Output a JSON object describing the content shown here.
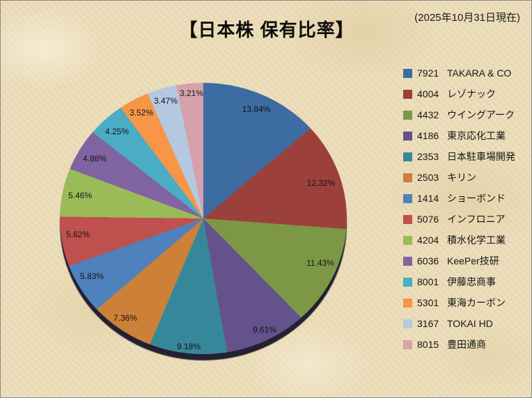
{
  "page": {
    "title": "【日本株 保有比率】",
    "as_of": "(2025年10月31日現在)"
  },
  "chart_data": {
    "type": "pie",
    "title": "【日本株 保有比率】",
    "as_of": "(2025年10月31日現在)",
    "start_angle_deg": 0,
    "direction": "clockwise",
    "legend_position": "right",
    "total_pct": 99.98,
    "slices": [
      {
        "code": "7921",
        "name": "TAKARA & CO",
        "value_pct": 13.84,
        "label": "13.84%",
        "color": "#3C6CA2"
      },
      {
        "code": "4004",
        "name": "レゾナック",
        "value_pct": 12.32,
        "label": "12.32%",
        "color": "#9C403C"
      },
      {
        "code": "4432",
        "name": "ウイングアーク",
        "value_pct": 11.43,
        "label": "11.43%",
        "color": "#7C9847"
      },
      {
        "code": "4186",
        "name": "東京応化工業",
        "value_pct": 9.61,
        "label": "9.61%",
        "color": "#64528C"
      },
      {
        "code": "2353",
        "name": "日本駐車場開発",
        "value_pct": 9.18,
        "label": "9.18%",
        "color": "#37879A"
      },
      {
        "code": "2503",
        "name": "キリン",
        "value_pct": 7.36,
        "label": "7.36%",
        "color": "#CC8038"
      },
      {
        "code": "1414",
        "name": "ショーボンド",
        "value_pct": 5.83,
        "label": "5.83%",
        "color": "#4F81BD"
      },
      {
        "code": "5076",
        "name": "インフロニア",
        "value_pct": 5.62,
        "label": "5.62%",
        "color": "#C0504D"
      },
      {
        "code": "4204",
        "name": "積水化学工業",
        "value_pct": 5.46,
        "label": "5.46%",
        "color": "#9BBB59"
      },
      {
        "code": "6036",
        "name": "KeePer技研",
        "value_pct": 4.88,
        "label": "4.88%",
        "color": "#8064A2"
      },
      {
        "code": "8001",
        "name": "伊藤忠商事",
        "value_pct": 4.25,
        "label": "4.25%",
        "color": "#4BACC6"
      },
      {
        "code": "5301",
        "name": "東海カーボン",
        "value_pct": 3.52,
        "label": "3.52%",
        "color": "#F79646"
      },
      {
        "code": "3167",
        "name": "TOKAI HD",
        "value_pct": 3.47,
        "label": "3.47%",
        "color": "#B5C8E2"
      },
      {
        "code": "8015",
        "name": "豊田通商",
        "value_pct": 3.21,
        "label": "3.21%",
        "color": "#D5A2AB"
      }
    ]
  }
}
